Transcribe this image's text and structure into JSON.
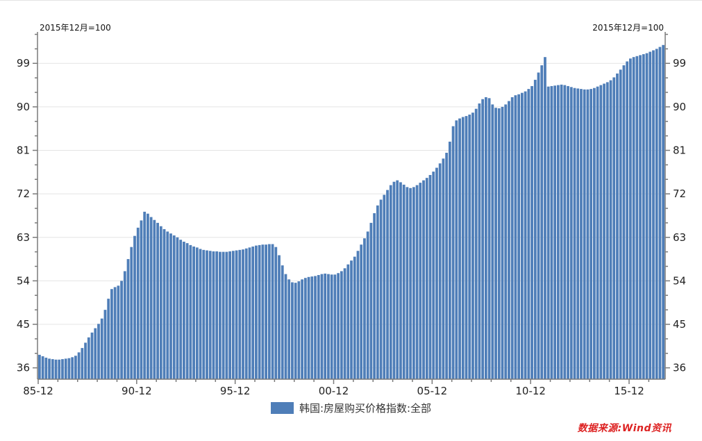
{
  "header": {
    "left_note": "2015年12月=100",
    "right_note": "2015年12月=100"
  },
  "legend": {
    "label": "韩国:房屋购买价格指数:全部"
  },
  "source": {
    "text": "数据来源:Wind资讯",
    "color": "#dd2222"
  },
  "colors": {
    "bar": "#4f7eb8",
    "axis": "#7a7a7a",
    "grid": "#e4e4e4",
    "background": "#ffffff"
  },
  "chart_data": {
    "type": "bar",
    "title": "",
    "series_name": "韩国:房屋购买价格指数:全部",
    "unit_note": "2015年12月=100",
    "x_start": "1985-12",
    "x_end": "2017-08",
    "x_step_months": 2,
    "x_tick_labels": [
      "85-12",
      "90-12",
      "95-12",
      "00-12",
      "05-12",
      "10-12",
      "15-12"
    ],
    "y_ticks": [
      36,
      45,
      54,
      63,
      72,
      81,
      90,
      99
    ],
    "y_minor_step": 3,
    "ylim": [
      33.65,
      105.5
    ],
    "grid": true,
    "legend_position": "bottom",
    "values": [
      38.7,
      38.4,
      38.1,
      37.9,
      37.8,
      37.7,
      37.7,
      37.8,
      37.9,
      38.0,
      38.2,
      38.5,
      39.2,
      40.1,
      41.2,
      42.3,
      43.3,
      44.2,
      45.1,
      46.2,
      48.0,
      50.3,
      52.3,
      52.7,
      53.0,
      54.0,
      56.0,
      58.5,
      61.0,
      63.3,
      65.0,
      66.5,
      68.3,
      67.9,
      67.2,
      66.6,
      66.0,
      65.3,
      64.7,
      64.2,
      63.8,
      63.4,
      63.0,
      62.5,
      62.1,
      61.8,
      61.4,
      61.1,
      60.9,
      60.6,
      60.4,
      60.3,
      60.2,
      60.1,
      60.1,
      60.0,
      60.0,
      60.0,
      60.1,
      60.2,
      60.3,
      60.4,
      60.5,
      60.7,
      60.9,
      61.1,
      61.3,
      61.4,
      61.5,
      61.5,
      61.6,
      61.6,
      61.0,
      59.3,
      57.2,
      55.4,
      54.3,
      53.7,
      53.6,
      53.9,
      54.3,
      54.6,
      54.8,
      54.9,
      55.0,
      55.2,
      55.4,
      55.5,
      55.4,
      55.3,
      55.3,
      55.6,
      56.0,
      56.6,
      57.4,
      58.2,
      59.0,
      60.2,
      61.5,
      62.8,
      64.2,
      66.0,
      68.0,
      69.6,
      70.8,
      71.8,
      72.8,
      73.8,
      74.5,
      74.8,
      74.4,
      73.9,
      73.4,
      73.2,
      73.4,
      73.8,
      74.3,
      74.8,
      75.3,
      75.9,
      76.6,
      77.4,
      78.3,
      79.3,
      80.5,
      82.8,
      86.0,
      87.2,
      87.6,
      87.9,
      88.1,
      88.4,
      88.8,
      89.6,
      90.7,
      91.6,
      92.0,
      91.8,
      90.5,
      89.8,
      89.7,
      90.0,
      90.5,
      91.2,
      92.0,
      92.4,
      92.6,
      92.9,
      93.2,
      93.7,
      94.3,
      95.6,
      97.1,
      98.6,
      100.3,
      94.2,
      94.3,
      94.4,
      94.5,
      94.6,
      94.5,
      94.3,
      94.1,
      93.9,
      93.8,
      93.7,
      93.6,
      93.6,
      93.7,
      93.9,
      94.2,
      94.5,
      94.8,
      95.1,
      95.5,
      96.1,
      96.9,
      97.7,
      98.6,
      99.4,
      100.0,
      100.3,
      100.5,
      100.7,
      100.9,
      101.1,
      101.4,
      101.7,
      102.0,
      102.4,
      102.8
    ]
  }
}
